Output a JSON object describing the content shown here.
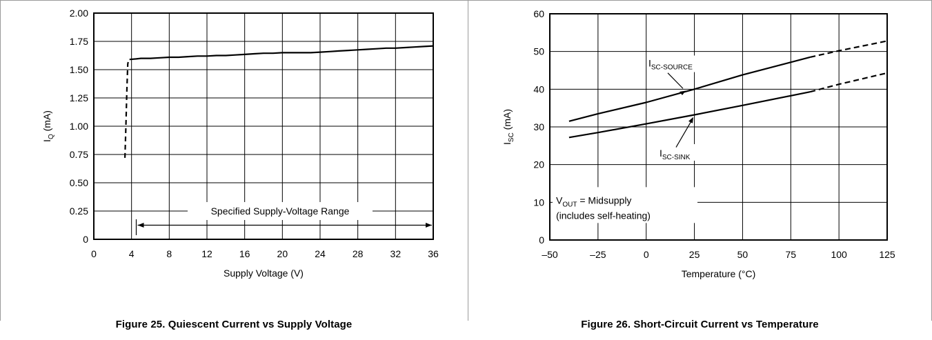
{
  "chart_data": [
    {
      "type": "line",
      "title": "",
      "caption": "Figure 25.  Quiescent Current vs Supply Voltage",
      "xlabel": "Supply Voltage (V)",
      "ylabel_main": "I",
      "ylabel_sub": "Q",
      "ylabel_unit": " (mA)",
      "xlim": [
        0,
        36
      ],
      "ylim": [
        0,
        2.0
      ],
      "xticks": [
        0,
        4,
        8,
        12,
        16,
        20,
        24,
        28,
        32,
        36
      ],
      "xtick_labels": [
        "0",
        "4",
        "8",
        "12",
        "16",
        "20",
        "24",
        "28",
        "32",
        "36"
      ],
      "yticks": [
        0,
        0.25,
        0.5,
        0.75,
        1.0,
        1.25,
        1.5,
        1.75,
        2.0
      ],
      "ytick_labels": [
        "0",
        "0.25",
        "0.50",
        "0.75",
        "1.00",
        "1.25",
        "1.50",
        "1.75",
        "2.00"
      ],
      "grid": true,
      "series": [
        {
          "style": "dashed",
          "x": [
            3.3,
            3.4,
            3.5,
            3.6,
            3.7,
            3.8
          ],
          "y": [
            0.72,
            1.0,
            1.3,
            1.55,
            1.59,
            1.59
          ]
        },
        {
          "style": "solid",
          "x": [
            3.8,
            4.5,
            5,
            6,
            7,
            8,
            9,
            10,
            11,
            12,
            13,
            14,
            15,
            16,
            17,
            18,
            19,
            20,
            21,
            22,
            23,
            24,
            25,
            26,
            27,
            28,
            29,
            30,
            31,
            32,
            33,
            34,
            35,
            36
          ],
          "y": [
            1.59,
            1.595,
            1.6,
            1.6,
            1.605,
            1.61,
            1.61,
            1.615,
            1.62,
            1.62,
            1.625,
            1.625,
            1.63,
            1.635,
            1.64,
            1.645,
            1.645,
            1.65,
            1.65,
            1.65,
            1.65,
            1.655,
            1.66,
            1.665,
            1.67,
            1.675,
            1.68,
            1.685,
            1.69,
            1.69,
            1.695,
            1.7,
            1.705,
            1.71
          ]
        }
      ],
      "annotation": {
        "text": "Specified Supply-Voltage Range",
        "range": [
          4.5,
          36
        ]
      }
    },
    {
      "type": "line",
      "title": "",
      "caption": "Figure 26.  Short-Circuit Current vs Temperature",
      "xlabel": "Temperature (°C)",
      "ylabel_main": "I",
      "ylabel_sub": "SC",
      "ylabel_unit": " (mA)",
      "xlim": [
        -50,
        125
      ],
      "ylim": [
        0,
        60
      ],
      "xticks": [
        -50,
        -25,
        0,
        25,
        50,
        75,
        100,
        125
      ],
      "xtick_labels": [
        "–50",
        "–25",
        "0",
        "25",
        "50",
        "75",
        "100",
        "125"
      ],
      "yticks": [
        0,
        10,
        20,
        30,
        40,
        50,
        60
      ],
      "ytick_labels": [
        "0",
        "10",
        "20",
        "30",
        "40",
        "50",
        "60"
      ],
      "grid": true,
      "series": [
        {
          "label_main": "I",
          "label_sub": "SC-SOURCE",
          "x": [
            -40,
            -25,
            0,
            25,
            50,
            85
          ],
          "y": [
            31.5,
            33.5,
            36.5,
            40,
            43.8,
            48.5
          ],
          "dashed_x": [
            85,
            100,
            125
          ],
          "dashed_y": [
            48.5,
            50.2,
            52.8
          ]
        },
        {
          "label_main": "I",
          "label_sub": "SC-SINK",
          "x": [
            -40,
            -25,
            0,
            25,
            50,
            85
          ],
          "y": [
            27.2,
            28.5,
            30.8,
            33.2,
            35.7,
            39.3
          ],
          "dashed_x": [
            85,
            100,
            125
          ],
          "dashed_y": [
            39.3,
            41.3,
            44.3
          ]
        }
      ],
      "note_line1_main": "V",
      "note_line1_sub": "OUT",
      "note_line1_rest": " = Midsupply",
      "note_line2": "(includes self-heating)"
    }
  ]
}
